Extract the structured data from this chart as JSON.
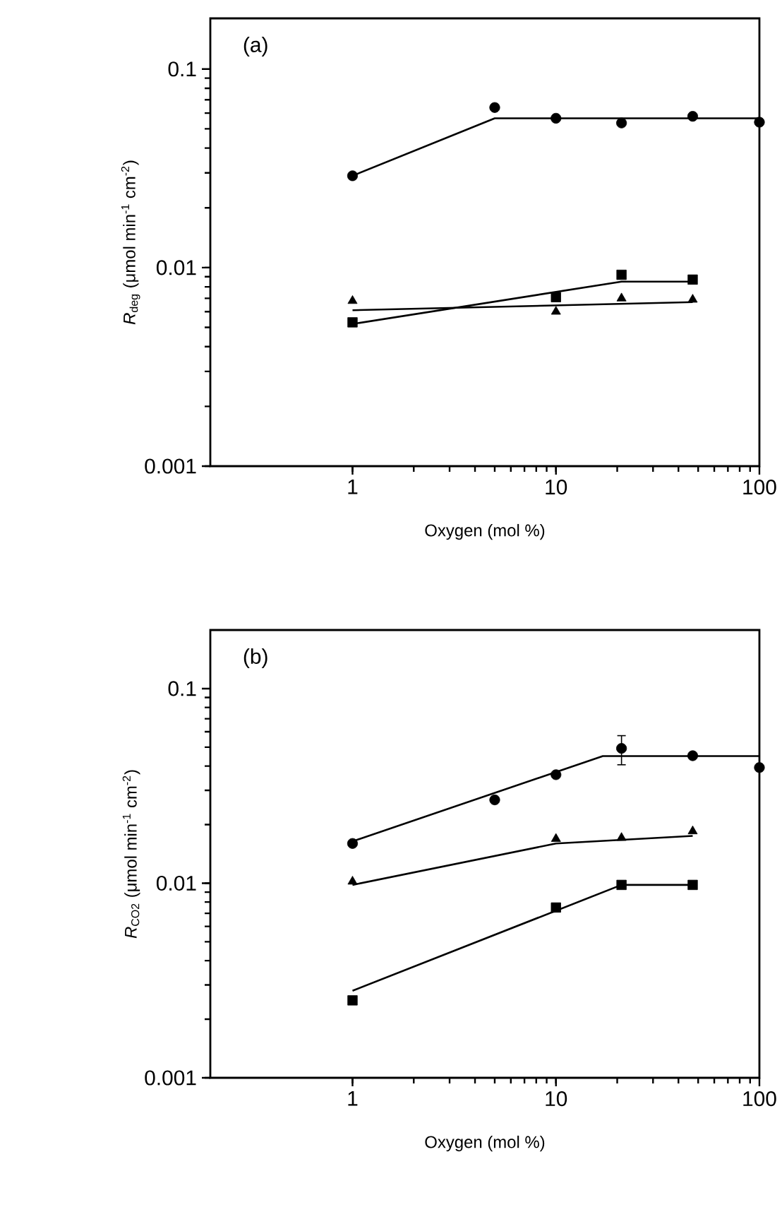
{
  "chart_data": [
    {
      "type": "scatter",
      "log": "xy",
      "xlim": [
        0.2,
        100
      ],
      "ylim": [
        0.001,
        0.18
      ],
      "xticks": [
        1,
        10,
        100
      ],
      "yticks": [
        0.001,
        0.01,
        0.1
      ],
      "xlabel": "Oxygen (mol %)",
      "ylabel": "*R*$_{deg}$ (μmol min$^{-1}$ cm$^{-2}$)",
      "annotations": [
        "(a)"
      ],
      "series": [
        {
          "type": "scatter",
          "marker": "circle",
          "color": "#000000",
          "x": [
            1,
            5,
            10,
            21,
            47,
            100
          ],
          "values": [
            0.029,
            0.064,
            0.0565,
            0.0535,
            0.0578,
            0.054
          ]
        },
        {
          "type": "scatter",
          "marker": "triangle",
          "color": "#000000",
          "x": [
            1,
            10,
            21,
            47
          ],
          "values": [
            0.0068,
            0.006,
            0.007,
            0.0069
          ]
        },
        {
          "type": "scatter",
          "marker": "square",
          "color": "#000000",
          "x": [
            1,
            10,
            21,
            47
          ],
          "values": [
            0.0053,
            0.0071,
            0.0092,
            0.0087
          ]
        },
        {
          "type": "line",
          "marker": "none",
          "color": "#000000",
          "x": [
            1,
            5,
            100
          ],
          "values": [
            0.029,
            0.0565,
            0.0565
          ]
        },
        {
          "type": "line",
          "marker": "none",
          "color": "#000000",
          "x": [
            1,
            47
          ],
          "values": [
            0.0061,
            0.0067
          ]
        },
        {
          "type": "line",
          "marker": "none",
          "color": "#000000",
          "x": [
            1,
            21,
            47
          ],
          "values": [
            0.0052,
            0.0085,
            0.0085
          ]
        }
      ]
    },
    {
      "type": "scatter",
      "log": "xy",
      "xlim": [
        0.2,
        100
      ],
      "ylim": [
        0.001,
        0.2
      ],
      "xticks": [
        1,
        10,
        100
      ],
      "yticks": [
        0.001,
        0.01,
        0.1
      ],
      "xlabel": "Oxygen (mol %)",
      "ylabel": "*R*$_{CO2}$ (μmol min$^{-1}$ cm$^{-2}$)",
      "annotations": [
        "(b)"
      ],
      "series": [
        {
          "type": "scatter",
          "marker": "circle",
          "color": "#000000",
          "x": [
            1,
            5,
            10,
            21,
            47,
            100
          ],
          "values": [
            0.016,
            0.0268,
            0.0361,
            0.0493,
            0.0452,
            0.0393
          ],
          "errors": [
            null,
            null,
            null,
            [
              0.0406,
              0.0573
            ],
            null,
            null
          ]
        },
        {
          "type": "scatter",
          "marker": "triangle",
          "color": "#000000",
          "x": [
            1,
            10,
            21,
            47
          ],
          "values": [
            0.0102,
            0.0169,
            0.0171,
            0.0185
          ]
        },
        {
          "type": "scatter",
          "marker": "square",
          "color": "#000000",
          "x": [
            1,
            10,
            21,
            47
          ],
          "values": [
            0.0025,
            0.0075,
            0.0098,
            0.0098
          ]
        },
        {
          "type": "line",
          "marker": "none",
          "color": "#000000",
          "x": [
            1,
            17,
            100
          ],
          "values": [
            0.0164,
            0.045,
            0.045
          ]
        },
        {
          "type": "line",
          "marker": "none",
          "color": "#000000",
          "x": [
            1,
            10,
            47
          ],
          "values": [
            0.0098,
            0.016,
            0.0175
          ]
        },
        {
          "type": "line",
          "marker": "none",
          "color": "#000000",
          "x": [
            1,
            21,
            47
          ],
          "values": [
            0.0028,
            0.0098,
            0.0098
          ]
        }
      ]
    }
  ]
}
